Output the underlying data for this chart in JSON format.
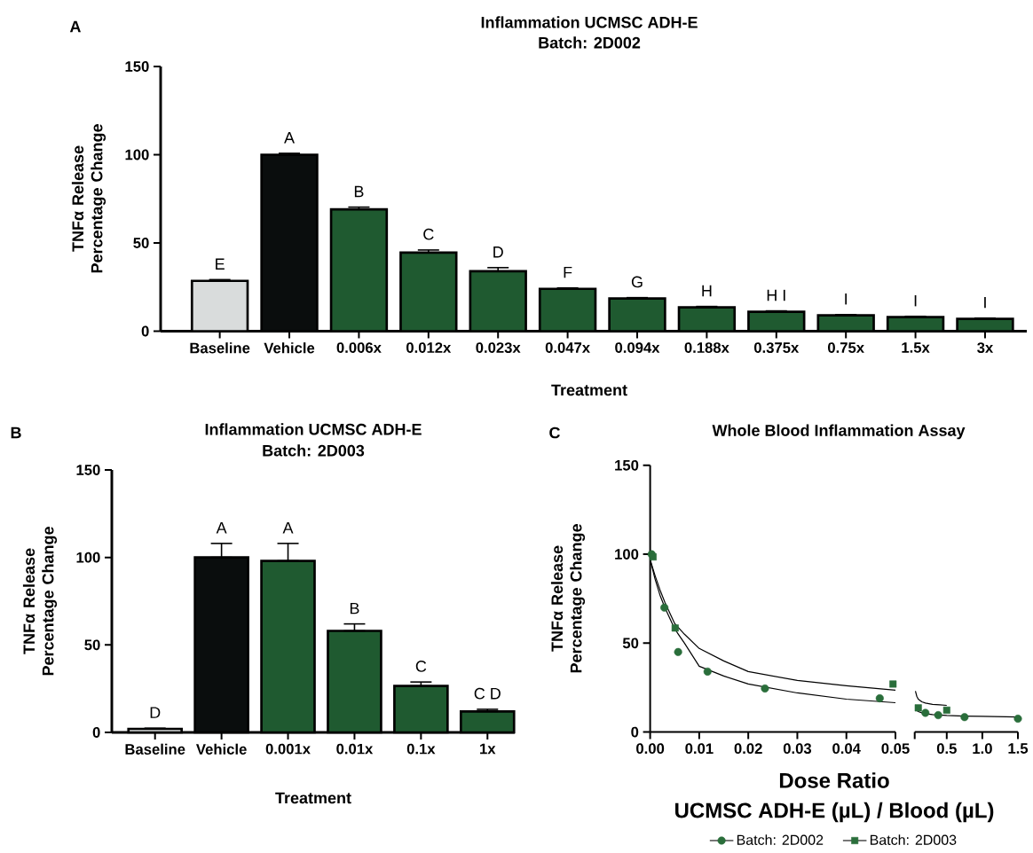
{
  "chart_data": [
    {
      "type": "bar",
      "title": "Inflammation UCMSC ADH-E",
      "subtitle": "Batch: 2D002",
      "xlabel": "Treatment",
      "ylabel": "TNFα Release Percentage Change",
      "annotations": [
        "A"
      ],
      "categories": [
        "Baseline",
        "Vehicle",
        "0.006x",
        "0.012x",
        "0.023x",
        "0.047x",
        "0.094x",
        "0.188x",
        "0.375x",
        "0.75x",
        "1.5x",
        "3x"
      ],
      "values": [
        28.5,
        100,
        69,
        44.5,
        34,
        24,
        18.5,
        13.5,
        11,
        9,
        8,
        7
      ],
      "errors": [
        [
          28.5,
          29.2
        ],
        [
          100,
          100.8
        ],
        [
          69,
          70.3
        ],
        [
          44.5,
          46
        ],
        [
          34,
          36
        ],
        [
          24,
          24.5
        ],
        [
          18.5,
          19
        ],
        [
          13.5,
          14
        ],
        [
          11,
          11.5
        ],
        [
          9,
          9.4
        ],
        [
          8,
          8.4
        ],
        [
          7,
          7.4
        ]
      ],
      "colors": [
        "#d9dcdc",
        "#0a0d0d",
        "#1f5a30",
        "#1f5a30",
        "#1f5a30",
        "#1f5a30",
        "#1f5a30",
        "#1f5a30",
        "#1f5a30",
        "#1f5a30",
        "#1f5a30",
        "#1f5a30"
      ],
      "value_labels": [
        "E",
        "A",
        "B",
        "C",
        "D",
        "F",
        "G",
        "H",
        "H I",
        "I",
        "I",
        "I"
      ],
      "ylim": [
        0,
        150
      ],
      "yticks": [
        0,
        50,
        100,
        150
      ]
    },
    {
      "type": "bar",
      "title": "Inflammation UCMSC ADH-E",
      "subtitle": "Batch: 2D003",
      "xlabel": "Treatment",
      "ylabel": "TNFα Release Percentage Change",
      "annotations": [
        "B"
      ],
      "categories": [
        "Baseline",
        "Vehicle",
        "0.001x",
        "0.01x",
        "0.1x",
        "1x"
      ],
      "values": [
        2,
        100,
        98,
        58,
        26.5,
        12
      ],
      "errors": [
        [
          2,
          2.4
        ],
        [
          100,
          108
        ],
        [
          98,
          108
        ],
        [
          58,
          62
        ],
        [
          26.5,
          28.8
        ],
        [
          12,
          13.2
        ]
      ],
      "colors": [
        "#d9dcdc",
        "#0a0d0d",
        "#1f5a30",
        "#1f5a30",
        "#1f5a30",
        "#1f5a30"
      ],
      "value_labels": [
        "D",
        "A",
        "A",
        "B",
        "C",
        "C D"
      ],
      "ylim": [
        0,
        150
      ],
      "yticks": [
        0,
        50,
        100,
        150
      ]
    },
    {
      "type": "scatter",
      "title": "Whole Blood Inflammation Assay",
      "xlabel": "Dose Ratio",
      "ylabel": "TNFα Release Percentage Change",
      "annotations": [
        "C",
        "UCMSC ADH-E (µL) / Blood (µL)"
      ],
      "legend": "bottom",
      "xlim": [
        0,
        0.05
      ],
      "xticks": [
        {
          "value": 0,
          "label": "0.00"
        },
        {
          "value": 0.01,
          "label": "0.01"
        },
        {
          "value": 0.02,
          "label": "0.02"
        },
        {
          "value": 0.03,
          "label": "0.03"
        },
        {
          "value": 0.04,
          "label": "0.04"
        },
        {
          "value": 0.05,
          "label": "0.05"
        }
      ],
      "ylim": [
        0,
        150
      ],
      "yticks": [
        0,
        50,
        100,
        150
      ],
      "series": [
        {
          "name": "Batch: 2D002",
          "color": "#2a6e3b",
          "marker": "circle",
          "x": [
            0.0003,
            0.0029,
            0.0057,
            0.0117,
            0.0234,
            0.0468
          ],
          "values": [
            100,
            70,
            45,
            34,
            24.5,
            19
          ]
        },
        {
          "name": "Batch: 2D003",
          "color": "#2a6e3b",
          "marker": "square",
          "x": [
            0.0006,
            0.0051,
            0.0495
          ],
          "values": [
            98.5,
            58.5,
            27
          ]
        },
        {
          "type": "line",
          "color": "#000000",
          "marker": "none",
          "x": [
            0,
            0.001,
            0.002,
            0.003,
            0.005,
            0.007,
            0.01,
            0.015,
            0.02,
            0.03,
            0.04,
            0.05
          ],
          "values": [
            97,
            86,
            77,
            70,
            58,
            50,
            37,
            31.5,
            27,
            22,
            18.5,
            16.5
          ]
        },
        {
          "type": "line",
          "color": "#000000",
          "marker": "none",
          "x": [
            0,
            0.001,
            0.002,
            0.003,
            0.005,
            0.007,
            0.01,
            0.015,
            0.02,
            0.03,
            0.04,
            0.05
          ],
          "values": [
            97,
            88,
            80,
            73,
            61,
            55,
            47,
            40,
            34,
            29,
            26,
            23.5
          ]
        }
      ]
    },
    {
      "type": "scatter",
      "tick_labels": "x",
      "xlim": [
        0.05,
        1.5
      ],
      "xticks": [
        {
          "value": 0.05,
          "label": null
        },
        0.5,
        {
          "value": 1,
          "label": "1.0"
        },
        1.5
      ],
      "ylim": [
        0,
        150
      ],
      "yticks": [
        0,
        50,
        100,
        150
      ],
      "series": [
        {
          "color": "#2a6e3b",
          "marker": "circle",
          "x": [
            0.2,
            0.38,
            0.75,
            1.5
          ],
          "values": [
            10.8,
            9.5,
            8.4,
            7.5
          ]
        },
        {
          "color": "#2a6e3b",
          "marker": "square",
          "x": [
            0.1,
            0.5
          ],
          "values": [
            13.6,
            12.3
          ]
        },
        {
          "type": "line",
          "color": "#000000",
          "marker": "none",
          "x": [
            0.06,
            0.1,
            0.15,
            0.2,
            0.3,
            0.5,
            0.75,
            1.0,
            1.5
          ],
          "values": [
            13,
            11.5,
            10.8,
            10.3,
            9.8,
            9.3,
            9,
            8.8,
            8.5
          ]
        },
        {
          "type": "line",
          "color": "#000000",
          "marker": "none",
          "x": [
            0.06,
            0.08,
            0.1,
            0.15,
            0.2,
            0.3,
            0.4,
            0.5
          ],
          "values": [
            23,
            20,
            18.5,
            17,
            16.3,
            15.6,
            15.3,
            15
          ]
        }
      ]
    }
  ]
}
